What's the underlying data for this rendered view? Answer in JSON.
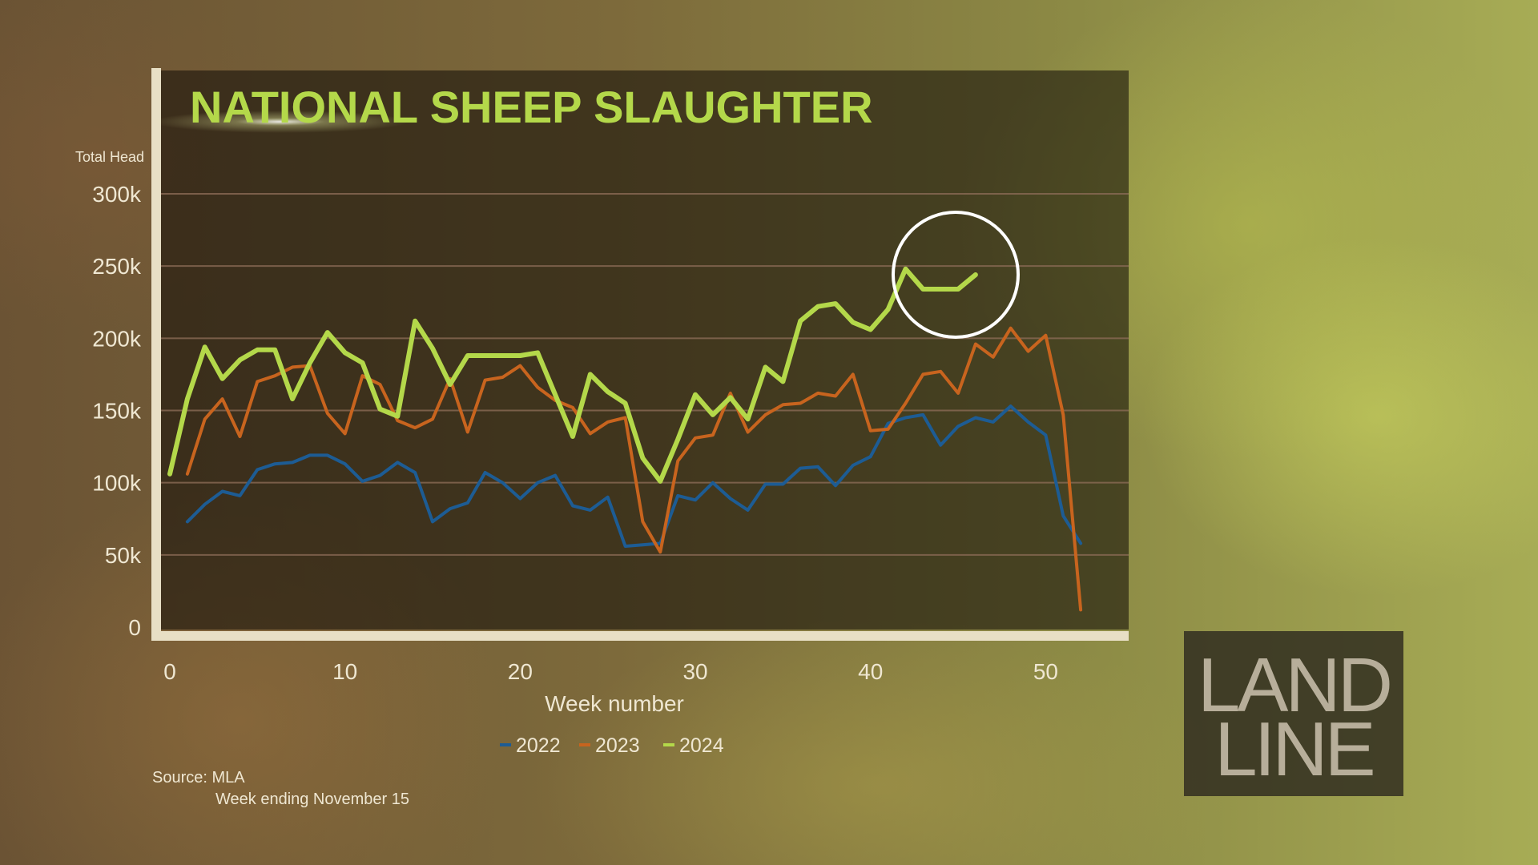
{
  "chart_data": {
    "type": "line",
    "title": "NATIONAL SHEEP SLAUGHTER",
    "ylabel": "Total Head",
    "xlabel": "Week number",
    "xlim": [
      0,
      53
    ],
    "ylim": [
      0,
      300000
    ],
    "x_ticks": [
      0,
      10,
      20,
      30,
      40,
      50
    ],
    "y_ticks": [
      0,
      50000,
      100000,
      150000,
      200000,
      250000,
      300000
    ],
    "y_tick_labels": [
      "0",
      "50k",
      "100k",
      "150k",
      "200k",
      "250k",
      "300k"
    ],
    "grid": "horizontal",
    "legend_position": "bottom-center",
    "series": [
      {
        "name": "2022",
        "color": "#1d5c94",
        "x": [
          1,
          2,
          3,
          4,
          5,
          6,
          7,
          8,
          9,
          10,
          11,
          12,
          13,
          14,
          15,
          16,
          17,
          18,
          19,
          20,
          21,
          22,
          23,
          24,
          25,
          26,
          27,
          28,
          29,
          30,
          31,
          32,
          33,
          34,
          35,
          36,
          37,
          38,
          39,
          40,
          41,
          42,
          43,
          44,
          45,
          46,
          47,
          48,
          49,
          50,
          51,
          52,
          53
        ],
        "y": [
          73000,
          85000,
          94000,
          91000,
          109000,
          113000,
          114000,
          119000,
          119000,
          113000,
          101000,
          105000,
          114000,
          107000,
          73000,
          82000,
          86000,
          107000,
          100000,
          89000,
          100000,
          105000,
          84000,
          81000,
          90000,
          56000,
          57000,
          58000,
          91000,
          88000,
          100000,
          89000,
          81000,
          99000,
          99000,
          110000,
          111000,
          98000,
          112000,
          118000,
          141000,
          145000,
          147000,
          126000,
          139000,
          145000,
          142000,
          153000,
          142000,
          133000,
          77000,
          58000,
          null
        ]
      },
      {
        "name": "2023",
        "color": "#c8641e",
        "x": [
          1,
          2,
          3,
          4,
          5,
          6,
          7,
          8,
          9,
          10,
          11,
          12,
          13,
          14,
          15,
          16,
          17,
          18,
          19,
          20,
          21,
          22,
          23,
          24,
          25,
          26,
          27,
          28,
          29,
          30,
          31,
          32,
          33,
          34,
          35,
          36,
          37,
          38,
          39,
          40,
          41,
          42,
          43,
          44,
          45,
          46,
          47,
          48,
          49,
          50,
          51,
          52,
          53
        ],
        "y": [
          106000,
          144000,
          158000,
          132000,
          170000,
          174000,
          180000,
          181000,
          148000,
          134000,
          174000,
          168000,
          143000,
          138000,
          144000,
          172000,
          135000,
          171000,
          173000,
          181000,
          166000,
          157000,
          152000,
          134000,
          142000,
          145000,
          73000,
          52000,
          115000,
          131000,
          133000,
          162000,
          135000,
          147000,
          154000,
          155000,
          162000,
          160000,
          175000,
          136000,
          137000,
          155000,
          175000,
          177000,
          162000,
          196000,
          187000,
          207000,
          191000,
          202000,
          147000,
          12000,
          null
        ]
      },
      {
        "name": "2024",
        "color": "#b4d84a",
        "x": [
          0,
          1,
          2,
          3,
          4,
          5,
          6,
          7,
          8,
          9,
          10,
          11,
          12,
          13,
          14,
          15,
          16,
          17,
          18,
          19,
          20,
          21,
          22,
          23,
          24,
          25,
          26,
          27,
          28,
          29,
          30,
          31,
          32,
          33,
          34,
          35,
          36,
          37,
          38,
          39,
          40,
          41,
          42,
          43,
          44,
          45,
          46
        ],
        "y": [
          106000,
          158000,
          194000,
          172000,
          185000,
          192000,
          192000,
          158000,
          183000,
          204000,
          190000,
          183000,
          151000,
          146000,
          212000,
          193000,
          168000,
          188000,
          188000,
          188000,
          188000,
          190000,
          161000,
          132000,
          175000,
          163000,
          155000,
          117000,
          101000,
          130000,
          161000,
          147000,
          159000,
          144000,
          180000,
          170000,
          212000,
          222000,
          224000,
          211000,
          206000,
          220000,
          248000,
          234000,
          234000,
          234000,
          244000
        ]
      }
    ],
    "annotations": [
      {
        "type": "circle",
        "around": "2024 series, weeks 42-46"
      }
    ]
  },
  "footer": {
    "source": "Source: MLA",
    "note": "Week ending November 15"
  },
  "logo": {
    "line1": "LAND",
    "line2": "LINE"
  },
  "colors": {
    "title": "#b4d84a",
    "text": "#efe7d2",
    "axis": "#e8dfc5",
    "grid": "#8a6a55"
  }
}
